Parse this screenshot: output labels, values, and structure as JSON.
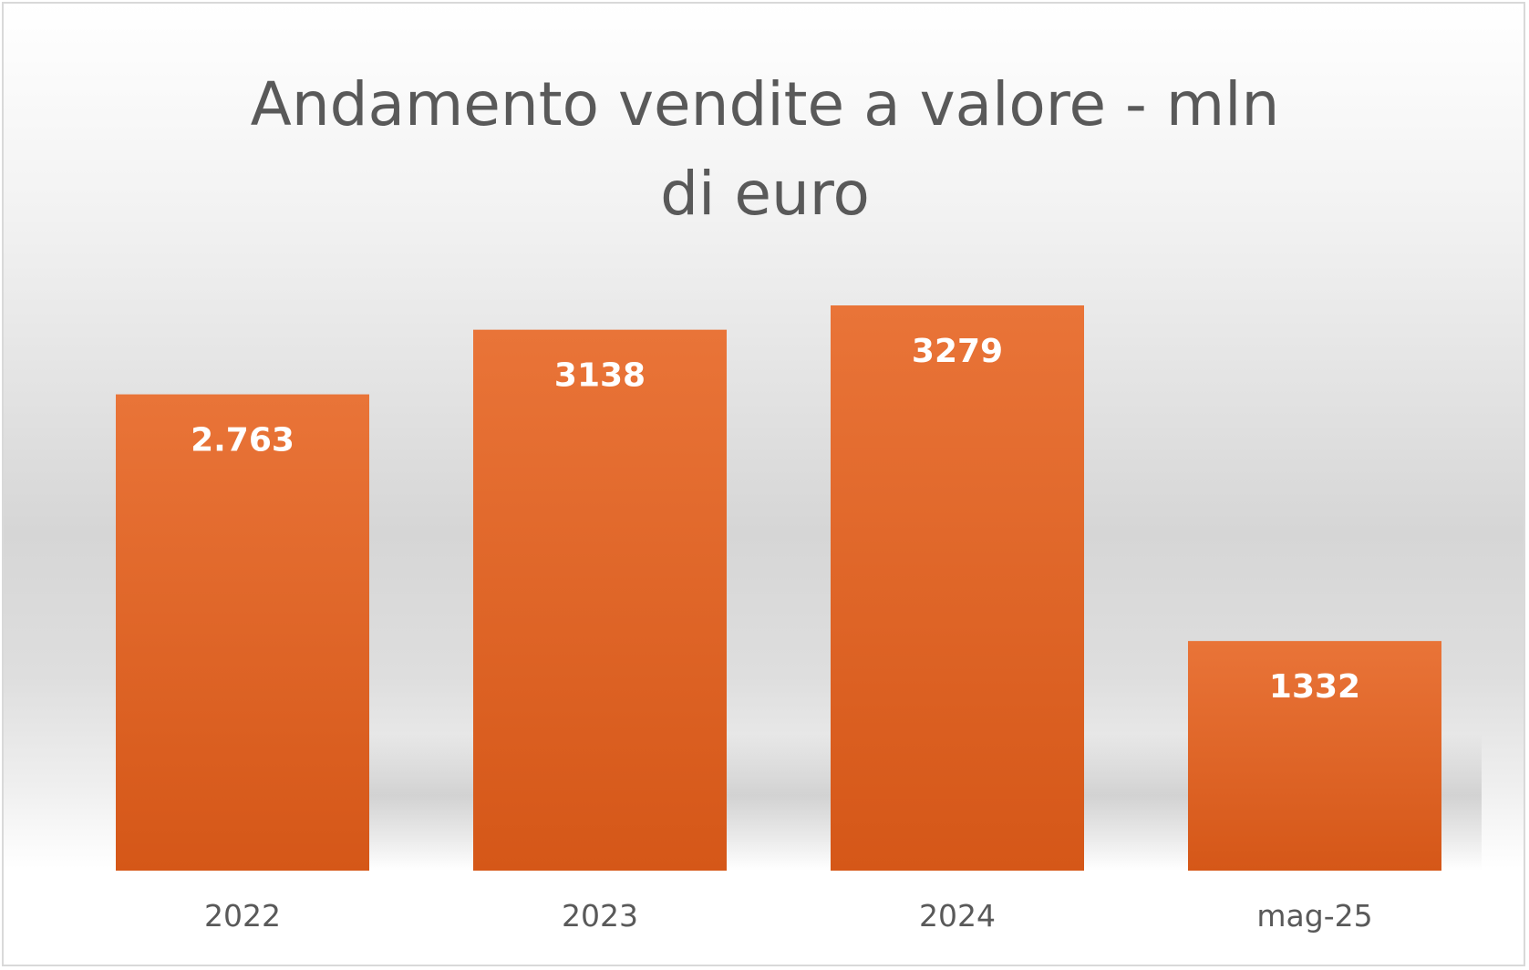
{
  "chart_data": {
    "type": "bar",
    "title": "Andamento vendite a valore - mln di euro",
    "categories": [
      "2022",
      "2023",
      "2024",
      "mag-25"
    ],
    "values": [
      2763,
      3138,
      3279,
      1332
    ],
    "data_labels": [
      "2.763",
      "3138",
      "3279",
      "1332"
    ],
    "xlabel": "",
    "ylabel": "",
    "ylim": [
      0,
      3500
    ],
    "grid": false,
    "legend": "none",
    "bar_color": "#e06428"
  }
}
